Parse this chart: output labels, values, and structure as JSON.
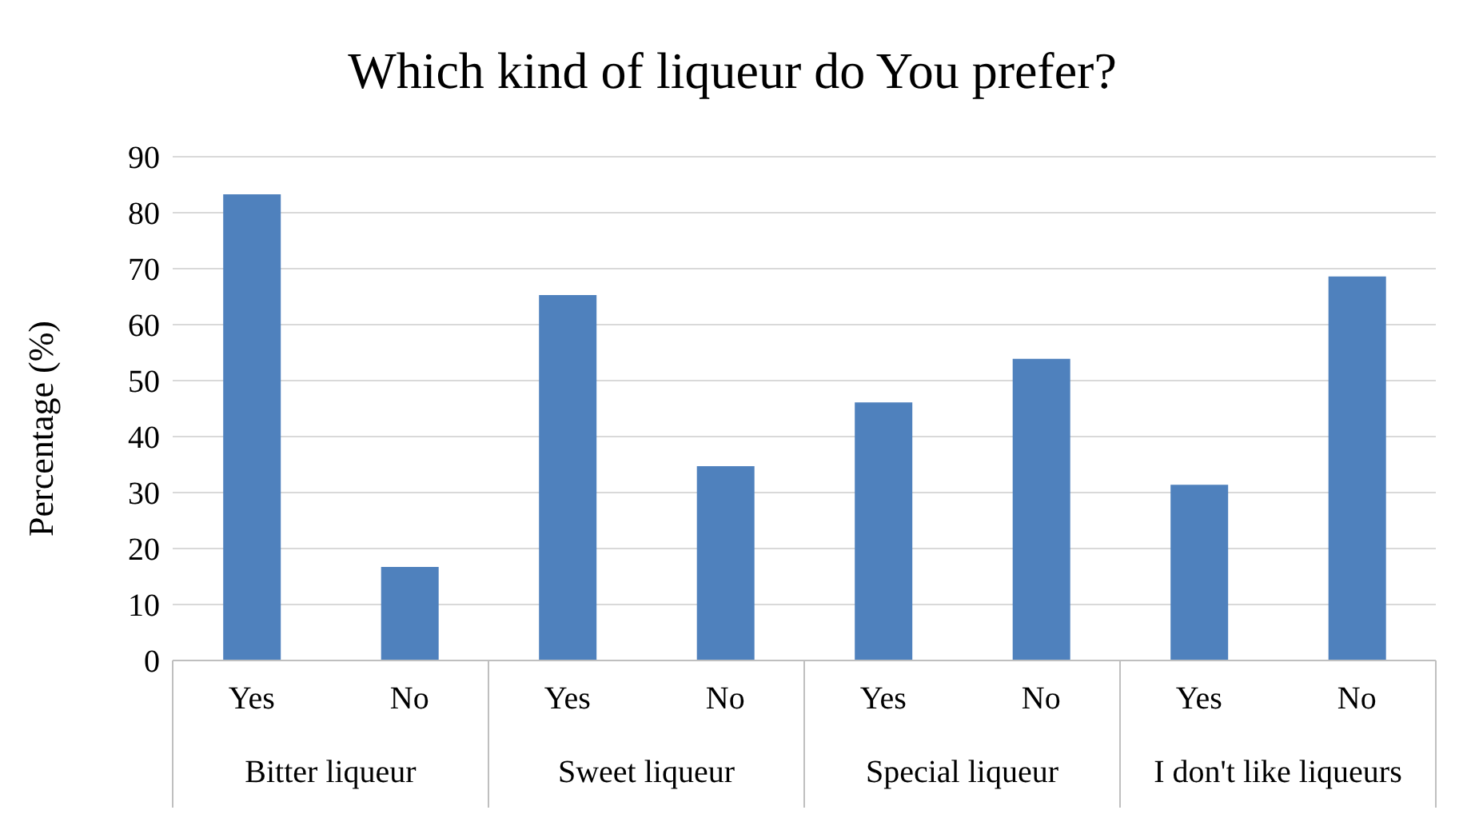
{
  "chart_data": {
    "type": "bar",
    "title": "Which kind of liqueur do You prefer?",
    "ylabel": "Percentage (%)",
    "categories": [
      "Yes",
      "No",
      "Yes",
      "No",
      "Yes",
      "No",
      "Yes",
      "No"
    ],
    "values": [
      83.3,
      16.7,
      65.3,
      34.7,
      46.1,
      53.9,
      31.4,
      68.6
    ],
    "color": "#4f81bd",
    "annotations": [
      "Bitter liqueur",
      "Sweet liqueur",
      "Special liqueur",
      "I don't like liqueurs"
    ],
    "ylim": [
      0,
      90
    ],
    "yticks": [
      0,
      10,
      20,
      30,
      40,
      50,
      60,
      70,
      80,
      90
    ],
    "grid": "y"
  }
}
